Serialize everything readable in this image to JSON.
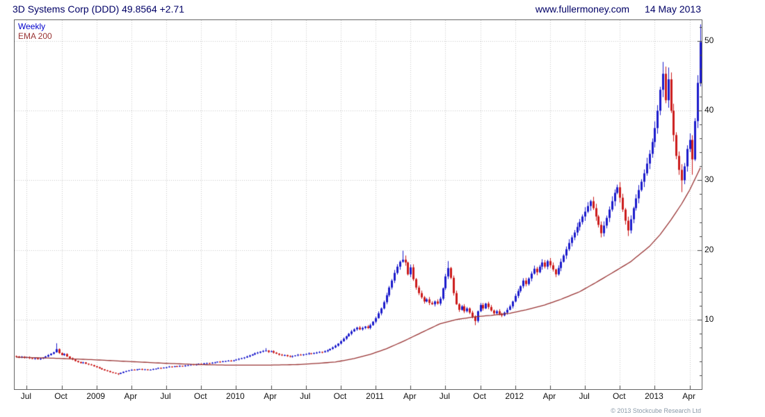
{
  "header": {
    "title": "3D Systems Corp (DDD) 49.8564 +2.71",
    "site": "www.fullermoney.com",
    "date": "14 May 2013"
  },
  "legend": {
    "series": "Weekly",
    "overlay": "EMA 200"
  },
  "footer": {
    "copyright": "© 2013 Stockcube Research Ltd"
  },
  "colors": {
    "up": "#1c1ccc",
    "down": "#cc1c1c",
    "ema": "#993333",
    "grid": "#c8c8c8",
    "axis": "#444444",
    "header_text": "#000066"
  },
  "chart_data": {
    "type": "candlestick",
    "title": "3D Systems Corp (DDD)",
    "timeframe": "Weekly",
    "last_price": 49.8564,
    "change": "+2.71",
    "ylim": [
      0,
      53
    ],
    "y_ticks": [
      10,
      20,
      30,
      40,
      50
    ],
    "x_tick_labels": [
      "Jul",
      "Oct",
      "2009",
      "Apr",
      "Jul",
      "Oct",
      "2010",
      "Apr",
      "Jul",
      "Oct",
      "2011",
      "Apr",
      "Jul",
      "Oct",
      "2012",
      "Apr",
      "Jul",
      "Oct",
      "2013",
      "Apr"
    ],
    "x_tick_weeks": [
      4,
      17,
      30,
      43,
      56,
      69,
      82,
      95,
      108,
      121,
      134,
      147,
      160,
      173,
      186,
      199,
      212,
      225,
      238,
      251
    ],
    "closes": [
      4.7,
      4.55,
      4.65,
      4.5,
      4.6,
      4.45,
      4.35,
      4.45,
      4.3,
      4.4,
      4.55,
      4.7,
      4.9,
      5.1,
      5.3,
      5.75,
      5.2,
      4.9,
      5.05,
      4.7,
      4.45,
      4.25,
      4.05,
      3.9,
      3.75,
      3.85,
      3.65,
      3.55,
      3.45,
      3.3,
      3.15,
      3.0,
      2.85,
      2.7,
      2.6,
      2.45,
      2.35,
      2.25,
      2.2,
      2.35,
      2.5,
      2.6,
      2.7,
      2.8,
      2.75,
      2.85,
      2.9,
      2.8,
      2.85,
      2.75,
      2.8,
      2.9,
      2.95,
      3.05,
      3.0,
      3.1,
      3.15,
      3.25,
      3.2,
      3.3,
      3.25,
      3.35,
      3.3,
      3.4,
      3.45,
      3.55,
      3.5,
      3.55,
      3.65,
      3.6,
      3.7,
      3.75,
      3.7,
      3.8,
      3.85,
      3.95,
      3.9,
      4.0,
      4.05,
      4.1,
      4.05,
      4.15,
      4.25,
      4.35,
      4.45,
      4.55,
      4.7,
      4.85,
      5.0,
      5.15,
      5.25,
      5.4,
      5.5,
      5.55,
      5.35,
      5.45,
      5.25,
      5.1,
      4.95,
      4.85,
      4.9,
      4.75,
      4.65,
      4.75,
      4.85,
      4.95,
      4.9,
      5.0,
      5.05,
      5.15,
      5.1,
      5.2,
      5.25,
      5.35,
      5.3,
      5.45,
      5.6,
      5.8,
      6.0,
      6.25,
      6.55,
      6.9,
      7.25,
      7.6,
      7.95,
      8.3,
      8.6,
      8.85,
      8.6,
      8.8,
      9.0,
      8.8,
      9.2,
      9.7,
      10.2,
      10.9,
      11.6,
      12.5,
      13.5,
      14.6,
      15.6,
      16.7,
      17.6,
      18.3,
      18.6,
      18.2,
      16.5,
      17.5,
      15.8,
      14.6,
      13.8,
      13.2,
      12.6,
      12.9,
      12.4,
      12.2,
      12.6,
      12.3,
      13.0,
      14.5,
      16.2,
      17.4,
      16.0,
      13.8,
      12.2,
      11.4,
      11.9,
      11.2,
      11.6,
      11.0,
      10.4,
      9.8,
      11.2,
      12.1,
      11.6,
      12.3,
      11.8,
      11.3,
      10.9,
      11.2,
      10.8,
      10.6,
      11.0,
      11.4,
      11.9,
      12.6,
      13.4,
      14.1,
      14.8,
      15.6,
      15.1,
      15.9,
      16.6,
      17.3,
      16.8,
      17.6,
      18.2,
      17.6,
      18.4,
      17.8,
      17.2,
      16.5,
      17.4,
      18.3,
      19.2,
      20.1,
      21.0,
      21.8,
      22.5,
      23.3,
      24.0,
      24.8,
      25.5,
      26.3,
      27.0,
      26.0,
      24.8,
      23.6,
      22.4,
      23.5,
      24.6,
      25.8,
      27.0,
      28.2,
      29.0,
      27.5,
      25.8,
      24.2,
      22.8,
      24.4,
      26.0,
      27.4,
      28.6,
      29.8,
      31.0,
      32.4,
      33.8,
      35.5,
      37.5,
      40.0,
      43.0,
      45.3,
      41.5,
      44.5,
      40.0,
      36.5,
      33.5,
      31.5,
      30.0,
      32.0,
      34.5,
      35.8,
      33.0,
      38.5,
      44.0,
      49.86
    ],
    "high_overrides": {
      "15": 6.6,
      "93": 5.9,
      "144": 19.9,
      "145": 19.2,
      "161": 18.4,
      "241": 47.0,
      "243": 46.2,
      "255": 52.4
    },
    "low_overrides": {
      "38": 2.05,
      "171": 9.2,
      "218": 21.8,
      "228": 22.0,
      "248": 28.3,
      "252": 30.8
    },
    "ema200_anchors": [
      [
        0,
        4.6
      ],
      [
        14,
        4.45
      ],
      [
        28,
        4.25
      ],
      [
        41,
        4.0
      ],
      [
        54,
        3.75
      ],
      [
        67,
        3.55
      ],
      [
        80,
        3.45
      ],
      [
        93,
        3.45
      ],
      [
        106,
        3.55
      ],
      [
        119,
        3.9
      ],
      [
        126,
        4.4
      ],
      [
        132,
        5.0
      ],
      [
        138,
        5.8
      ],
      [
        145,
        7.0
      ],
      [
        152,
        8.3
      ],
      [
        158,
        9.4
      ],
      [
        164,
        10.0
      ],
      [
        171,
        10.4
      ],
      [
        177,
        10.6
      ],
      [
        184,
        10.9
      ],
      [
        190,
        11.4
      ],
      [
        197,
        12.1
      ],
      [
        203,
        12.9
      ],
      [
        210,
        14.0
      ],
      [
        216,
        15.3
      ],
      [
        223,
        16.9
      ],
      [
        229,
        18.3
      ],
      [
        236,
        20.5
      ],
      [
        240,
        22.2
      ],
      [
        244,
        24.3
      ],
      [
        248,
        26.6
      ],
      [
        251,
        28.6
      ],
      [
        253,
        30.2
      ],
      [
        255,
        31.8
      ]
    ]
  }
}
